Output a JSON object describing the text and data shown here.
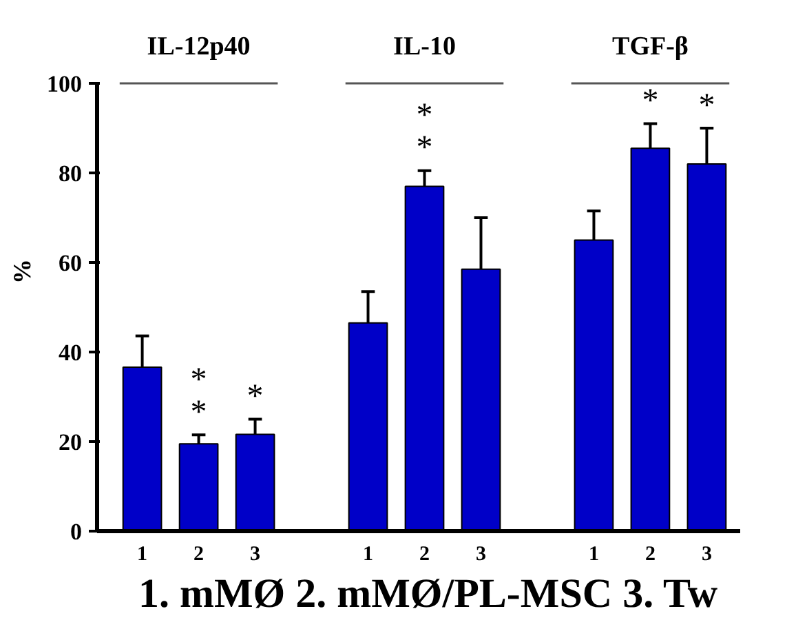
{
  "chart_data": {
    "type": "bar",
    "categories": [
      "IL-12p40",
      "IL-10",
      "TGF-β"
    ],
    "series": [
      {
        "name": "1",
        "color": "#0000c8",
        "values": [
          36.6,
          46.5,
          65
        ],
        "errors": [
          7,
          7,
          6.5
        ]
      },
      {
        "name": "2",
        "color": "#0000c8",
        "values": [
          19.5,
          77,
          85.5
        ],
        "errors": [
          2,
          3.5,
          5.5
        ],
        "value_labels": [
          "*\n*",
          "*\n*",
          "*"
        ]
      },
      {
        "name": "3",
        "color": "#0000c8",
        "values": [
          21.6,
          58.5,
          82
        ],
        "errors": [
          3.4,
          11.5,
          8
        ],
        "value_labels": [
          "*",
          null,
          "*"
        ]
      }
    ],
    "ylabel": "%",
    "xlabel": "1. mMØ  2. mMØ/PL-MSC  3. Tw",
    "ylim": [
      0,
      100
    ],
    "yticks": [
      0,
      20,
      40,
      60,
      80,
      100
    ]
  }
}
